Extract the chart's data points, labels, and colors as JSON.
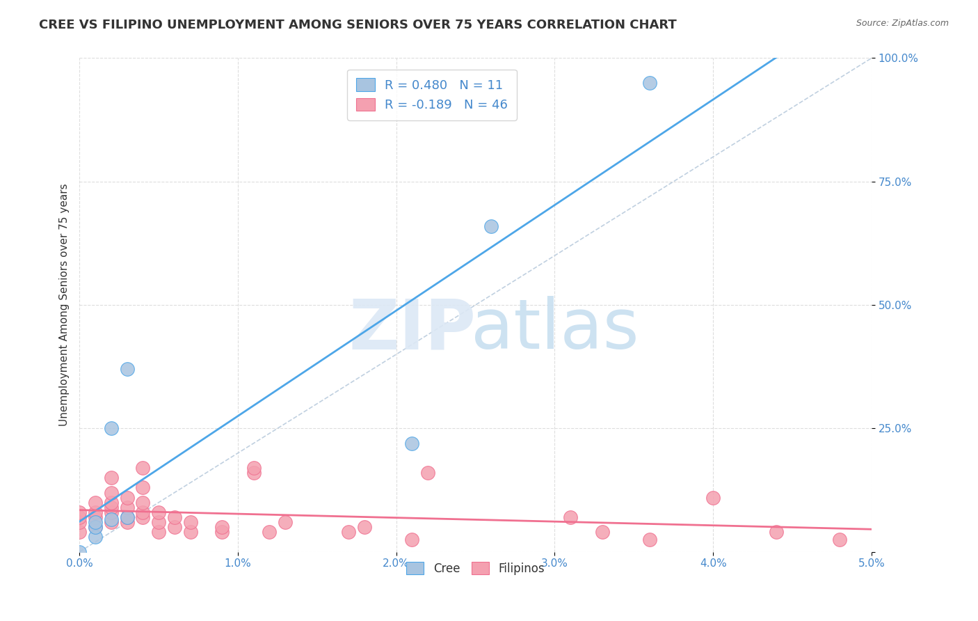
{
  "title": "CREE VS FILIPINO UNEMPLOYMENT AMONG SENIORS OVER 75 YEARS CORRELATION CHART",
  "source": "Source: ZipAtlas.com",
  "xlabel": "",
  "ylabel": "Unemployment Among Seniors over 75 years",
  "xlim": [
    0.0,
    0.05
  ],
  "ylim": [
    0.0,
    1.0
  ],
  "xticks": [
    0.0,
    0.01,
    0.02,
    0.03,
    0.04,
    0.05
  ],
  "xtick_labels": [
    "0.0%",
    "1.0%",
    "2.0%",
    "3.0%",
    "4.0%",
    "5.0%"
  ],
  "yticks": [
    0.0,
    0.25,
    0.5,
    0.75,
    1.0
  ],
  "ytick_labels": [
    "",
    "25.0%",
    "50.0%",
    "75.0%",
    "100.0%"
  ],
  "cree_R": 0.48,
  "cree_N": 11,
  "filipino_R": -0.189,
  "filipino_N": 46,
  "cree_color": "#a8c4e0",
  "filipino_color": "#f4a0b0",
  "cree_line_color": "#4da6e8",
  "filipino_line_color": "#f07090",
  "diagonal_color": "#c0d0e0",
  "legend_text_color": "#4488cc",
  "cree_points_x": [
    0.0,
    0.001,
    0.001,
    0.001,
    0.002,
    0.002,
    0.003,
    0.003,
    0.021,
    0.026,
    0.036
  ],
  "cree_points_y": [
    0.0,
    0.03,
    0.05,
    0.06,
    0.066,
    0.25,
    0.37,
    0.07,
    0.22,
    0.66,
    0.95
  ],
  "filipino_points_x": [
    0.0,
    0.0,
    0.0,
    0.0,
    0.001,
    0.001,
    0.001,
    0.001,
    0.002,
    0.002,
    0.002,
    0.002,
    0.002,
    0.002,
    0.003,
    0.003,
    0.003,
    0.003,
    0.004,
    0.004,
    0.004,
    0.004,
    0.004,
    0.005,
    0.005,
    0.005,
    0.006,
    0.006,
    0.007,
    0.007,
    0.009,
    0.009,
    0.011,
    0.011,
    0.012,
    0.013,
    0.017,
    0.018,
    0.021,
    0.022,
    0.031,
    0.033,
    0.036,
    0.04,
    0.044,
    0.048
  ],
  "filipino_points_y": [
    0.04,
    0.06,
    0.07,
    0.08,
    0.05,
    0.07,
    0.08,
    0.1,
    0.06,
    0.08,
    0.09,
    0.1,
    0.12,
    0.15,
    0.06,
    0.07,
    0.09,
    0.11,
    0.07,
    0.08,
    0.1,
    0.13,
    0.17,
    0.04,
    0.06,
    0.08,
    0.05,
    0.07,
    0.04,
    0.06,
    0.04,
    0.05,
    0.16,
    0.17,
    0.04,
    0.06,
    0.04,
    0.05,
    0.025,
    0.16,
    0.07,
    0.04,
    0.025,
    0.11,
    0.04,
    0.025
  ],
  "background_color": "#ffffff",
  "grid_color": "#dddddd"
}
